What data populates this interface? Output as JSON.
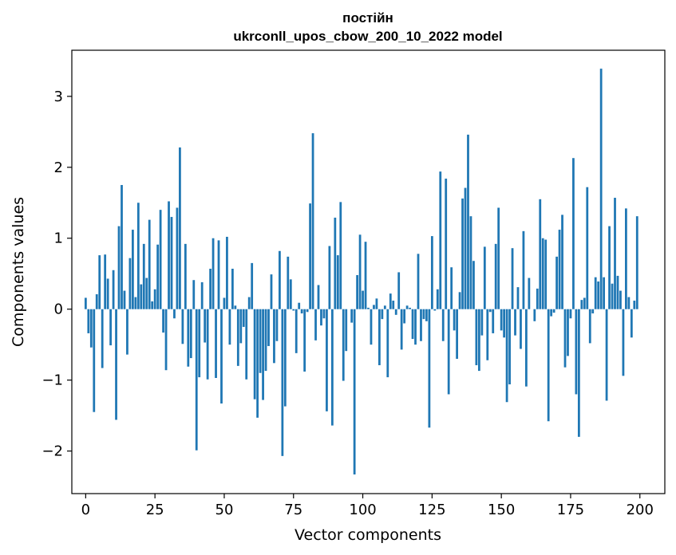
{
  "chart_data": {
    "type": "bar",
    "title": [
      "постійн",
      "ukrconll_upos_cbow_200_10_2022 model"
    ],
    "xlabel": "Vector components",
    "ylabel": "Components values",
    "xlim": [
      -5,
      209
    ],
    "ylim": [
      -2.6,
      3.65
    ],
    "xticks": [
      0,
      25,
      50,
      75,
      100,
      125,
      150,
      175,
      200
    ],
    "yticks": [
      -2,
      -1,
      0,
      1,
      2,
      3
    ],
    "ytick_labels": [
      "−2",
      "−1",
      "0",
      "1",
      "2",
      "3"
    ],
    "bar_color": "#1f77b4",
    "grid": false,
    "x_start": 0,
    "values": [
      0.16,
      -0.34,
      -0.54,
      -1.45,
      0.21,
      0.76,
      -0.83,
      0.77,
      0.43,
      -0.51,
      0.55,
      -1.56,
      1.17,
      1.75,
      0.26,
      -0.64,
      0.72,
      1.12,
      0.17,
      1.5,
      0.35,
      0.92,
      0.44,
      1.26,
      0.11,
      0.28,
      0.91,
      1.4,
      -0.33,
      -0.86,
      1.52,
      1.3,
      -0.13,
      1.43,
      2.28,
      -0.49,
      0.92,
      -0.81,
      -0.69,
      0.41,
      -1.99,
      -0.96,
      0.38,
      -0.47,
      -0.99,
      0.57,
      1.0,
      -0.97,
      0.97,
      -1.33,
      0.16,
      1.02,
      -0.5,
      0.57,
      0.05,
      -0.8,
      -0.48,
      -0.25,
      -0.99,
      0.17,
      0.65,
      -1.27,
      -1.53,
      -0.9,
      -1.28,
      -0.87,
      -0.52,
      0.49,
      -0.76,
      -0.45,
      0.82,
      -2.07,
      -1.37,
      0.74,
      0.42,
      -0.02,
      -0.62,
      0.09,
      -0.06,
      -0.88,
      -0.04,
      1.49,
      2.48,
      -0.44,
      0.34,
      -0.23,
      -0.13,
      -1.44,
      0.89,
      -1.64,
      1.29,
      0.76,
      1.51,
      -1.01,
      -0.59,
      0.0,
      -0.19,
      -2.33,
      0.48,
      1.05,
      0.26,
      0.95,
      0.02,
      -0.5,
      0.06,
      0.15,
      -0.79,
      -0.14,
      0.05,
      -0.96,
      0.22,
      0.12,
      -0.08,
      0.52,
      -0.57,
      -0.2,
      0.05,
      0.02,
      -0.42,
      -0.5,
      0.78,
      -0.45,
      -0.14,
      -0.17,
      -1.67,
      1.03,
      -0.02,
      0.28,
      1.94,
      -0.45,
      1.84,
      -1.2,
      0.59,
      -0.3,
      -0.7,
      0.24,
      1.56,
      1.71,
      2.46,
      1.31,
      0.68,
      -0.79,
      -0.87,
      -0.37,
      0.88,
      -0.72,
      -0.04,
      -0.34,
      0.92,
      1.43,
      -0.3,
      -0.4,
      -1.31,
      -1.06,
      0.86,
      -0.37,
      0.31,
      -0.56,
      1.1,
      -1.09,
      0.44,
      0.0,
      -0.17,
      0.29,
      1.55,
      1.0,
      0.98,
      -1.58,
      -0.1,
      -0.05,
      0.74,
      1.12,
      1.33,
      -0.82,
      -0.66,
      -0.13,
      2.13,
      -1.2,
      -1.8,
      0.13,
      0.16,
      1.72,
      -0.48,
      -0.06,
      0.45,
      0.39,
      3.39,
      0.45,
      -1.29,
      1.17,
      0.36,
      1.57,
      0.47,
      0.26,
      -0.94,
      1.42,
      0.17,
      -0.4,
      0.12,
      1.31
    ]
  }
}
